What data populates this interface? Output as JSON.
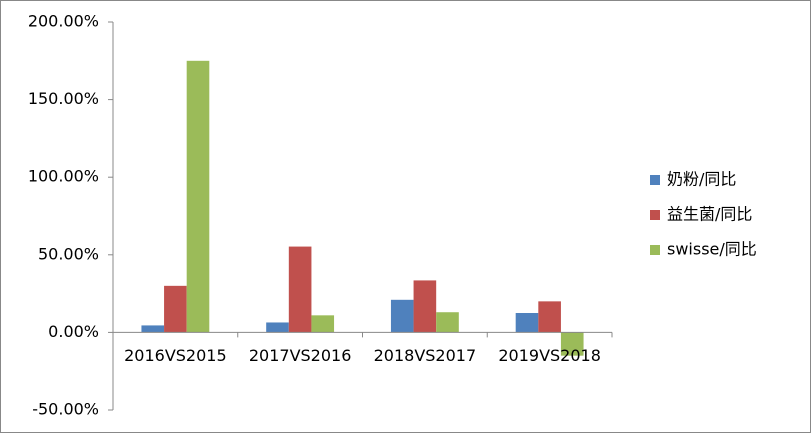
{
  "chart_data": {
    "type": "bar",
    "categories": [
      "2016VS2015",
      "2017VS2016",
      "2018VS2017",
      "2019VS2018"
    ],
    "series": [
      {
        "name": "奶粉/同比",
        "color": "#4f81bd",
        "values": [
          4.5,
          6.4,
          21,
          12.5
        ]
      },
      {
        "name": "益生菌/同比",
        "color": "#c0504d",
        "values": [
          30,
          55.3,
          33.5,
          20
        ]
      },
      {
        "name": "swisse/同比",
        "color": "#9bbb59",
        "values": [
          175,
          11,
          13,
          -15
        ]
      }
    ],
    "ylim": [
      -50,
      200
    ],
    "yticks": [
      {
        "value": -50,
        "label": "-50.00%"
      },
      {
        "value": 0,
        "label": "0.00%"
      },
      {
        "value": 50,
        "label": "50.00%"
      },
      {
        "value": 100,
        "label": "100.00%"
      },
      {
        "value": 150,
        "label": "150.00%"
      },
      {
        "value": 200,
        "label": "200.00%"
      }
    ],
    "legend": "right"
  }
}
